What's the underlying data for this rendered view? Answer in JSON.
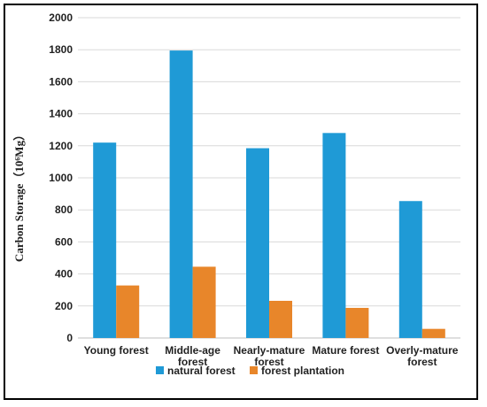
{
  "chart_data": {
    "type": "bar",
    "title": "",
    "xlabel": "",
    "ylabel": "Carbon Storage（10⁶Mg）",
    "ylim": [
      0,
      2000
    ],
    "yticks": [
      0,
      200,
      400,
      600,
      800,
      1000,
      1200,
      1400,
      1600,
      1800,
      2000
    ],
    "grid": true,
    "legend": "bottom",
    "categories": [
      [
        "Young forest"
      ],
      [
        "Middle-age",
        "forest"
      ],
      [
        "Nearly-mature",
        "forest"
      ],
      [
        "Mature forest"
      ],
      [
        "Overly-mature",
        "forest"
      ]
    ],
    "series": [
      {
        "name": "natural forest",
        "color": "#1f9ad6",
        "values": [
          1220,
          1795,
          1185,
          1280,
          855
        ]
      },
      {
        "name": "forest plantation",
        "color": "#e8862a",
        "values": [
          328,
          445,
          232,
          188,
          57
        ]
      }
    ]
  }
}
